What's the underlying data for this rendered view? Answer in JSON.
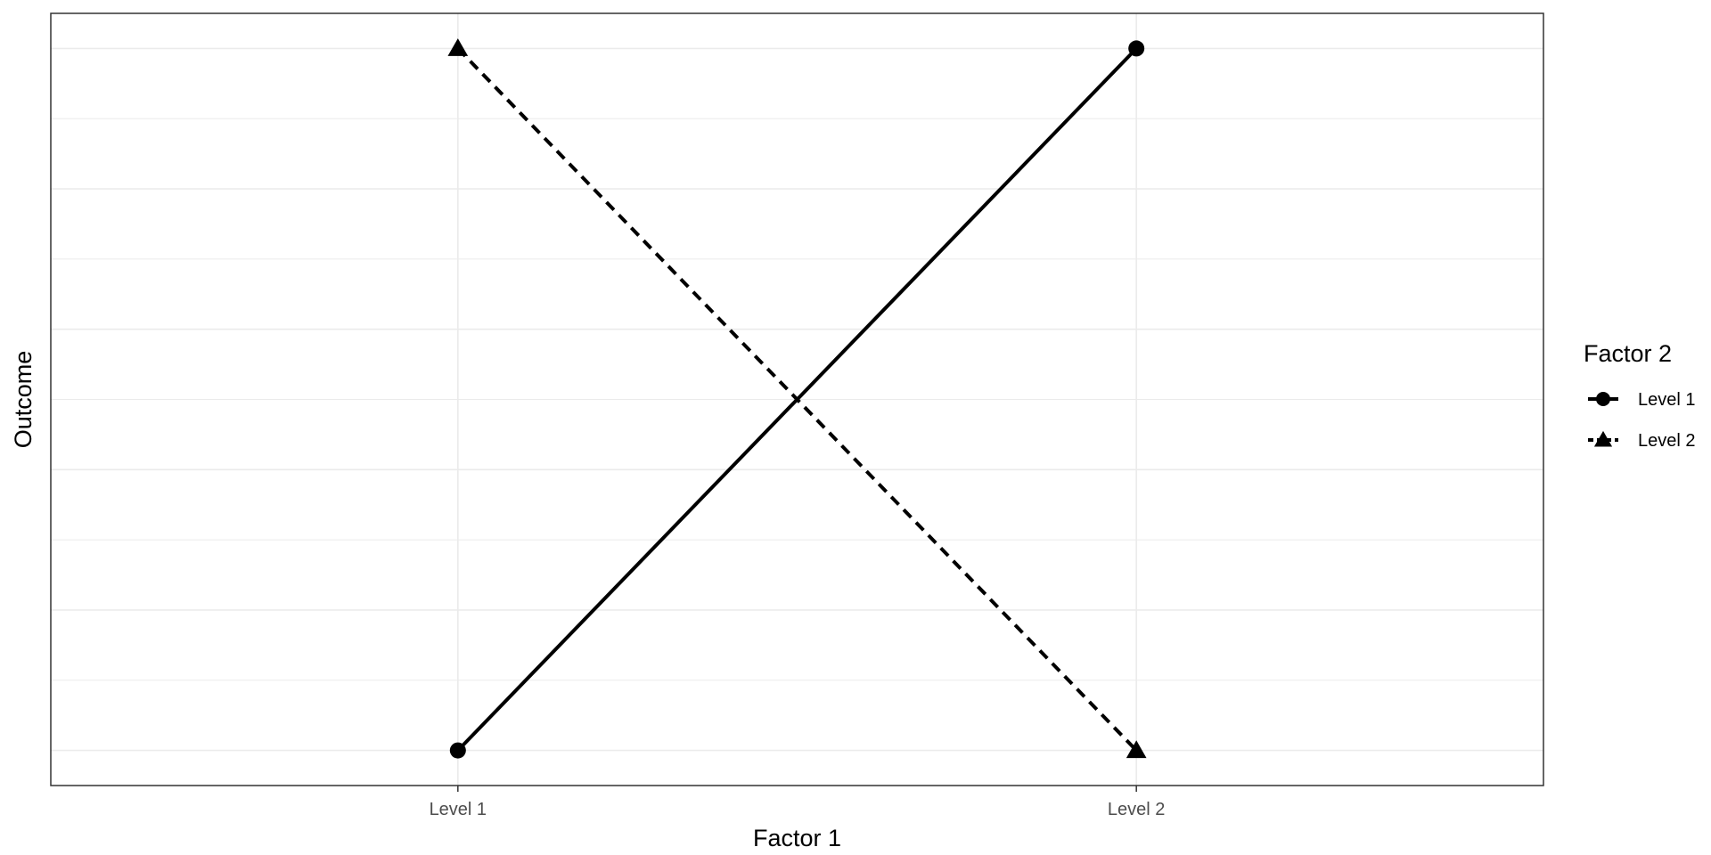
{
  "chart_data": {
    "type": "line",
    "title": "",
    "xlabel": "Factor 1",
    "ylabel": "Outcome",
    "categories": [
      "Level 1",
      "Level 2"
    ],
    "ylim": [
      -0.05,
      1.05
    ],
    "y_ticks_labeled": false,
    "grid": true,
    "legend": {
      "title": "Factor 2",
      "placement": "right"
    },
    "series": [
      {
        "name": "Level 1",
        "values": [
          0,
          1
        ],
        "marker": "circle",
        "linestyle": "solid",
        "color": "#000000"
      },
      {
        "name": "Level 2",
        "values": [
          1,
          0
        ],
        "marker": "triangle",
        "linestyle": "dashed",
        "color": "#000000"
      }
    ]
  }
}
